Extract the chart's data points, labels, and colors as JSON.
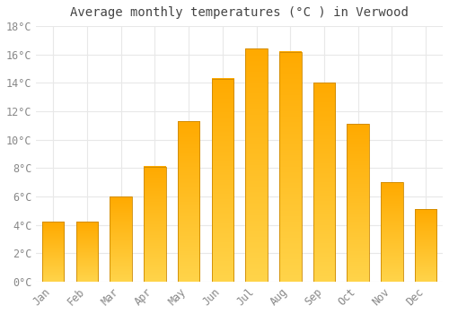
{
  "title": "Average monthly temperatures (°C ) in Verwood",
  "months": [
    "Jan",
    "Feb",
    "Mar",
    "Apr",
    "May",
    "Jun",
    "Jul",
    "Aug",
    "Sep",
    "Oct",
    "Nov",
    "Dec"
  ],
  "values": [
    4.2,
    4.2,
    6.0,
    8.1,
    11.3,
    14.3,
    16.4,
    16.2,
    14.0,
    11.1,
    7.0,
    5.1
  ],
  "bar_color_bottom": "#FFD44A",
  "bar_color_top": "#FFAA00",
  "bar_edge_color": "#CC8800",
  "background_color": "#FFFFFF",
  "grid_color": "#E8E8E8",
  "text_color": "#888888",
  "title_color": "#444444",
  "ylim": [
    0,
    18
  ],
  "yticks": [
    0,
    2,
    4,
    6,
    8,
    10,
    12,
    14,
    16,
    18
  ],
  "title_fontsize": 10,
  "tick_fontsize": 8.5,
  "bar_width": 0.65
}
